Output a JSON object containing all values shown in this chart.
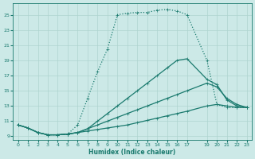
{
  "xlabel": "Humidex (Indice chaleur)",
  "line_color": "#1a7a6e",
  "bg_color": "#cce9e7",
  "grid_color": "#aed4d0",
  "xlim": [
    -0.5,
    23.5
  ],
  "ylim": [
    8.5,
    26.5
  ],
  "xticks": [
    0,
    1,
    2,
    3,
    4,
    5,
    6,
    7,
    8,
    9,
    10,
    11,
    12,
    13,
    14,
    15,
    16,
    17,
    19,
    20,
    21,
    22,
    23
  ],
  "yticks": [
    9,
    11,
    13,
    15,
    17,
    19,
    21,
    23,
    25
  ],
  "line1_x": [
    0,
    1,
    2,
    3,
    4,
    5,
    6,
    7,
    8,
    9,
    10,
    11,
    12,
    13,
    14,
    15,
    16,
    17,
    19,
    20,
    21,
    22,
    23
  ],
  "line1_y": [
    10.5,
    10.1,
    9.5,
    9.2,
    9.2,
    9.3,
    10.5,
    14.0,
    17.5,
    20.5,
    25.0,
    25.2,
    25.3,
    25.3,
    25.6,
    25.7,
    25.5,
    25.0,
    19.0,
    13.2,
    12.8,
    12.8,
    12.8
  ],
  "line2_x": [
    0,
    1,
    2,
    3,
    4,
    5,
    6,
    7,
    8,
    9,
    10,
    11,
    12,
    13,
    14,
    15,
    16,
    17,
    19,
    20,
    21,
    22,
    23
  ],
  "line2_y": [
    10.5,
    10.1,
    9.5,
    9.2,
    9.2,
    9.3,
    9.5,
    10.0,
    11.0,
    12.0,
    13.0,
    14.0,
    15.0,
    16.0,
    17.0,
    18.0,
    19.0,
    19.2,
    16.5,
    15.8,
    13.8,
    13.0,
    12.8
  ],
  "line3_x": [
    0,
    1,
    2,
    3,
    4,
    5,
    6,
    7,
    8,
    9,
    10,
    11,
    12,
    13,
    14,
    15,
    16,
    17,
    19,
    20,
    21,
    22,
    23
  ],
  "line3_y": [
    10.5,
    10.1,
    9.5,
    9.2,
    9.2,
    9.3,
    9.5,
    10.0,
    10.5,
    11.0,
    11.5,
    12.0,
    12.5,
    13.0,
    13.5,
    14.0,
    14.5,
    15.0,
    16.0,
    15.5,
    14.0,
    13.2,
    12.8
  ],
  "line4_x": [
    0,
    1,
    2,
    3,
    4,
    5,
    6,
    7,
    8,
    9,
    10,
    11,
    12,
    13,
    14,
    15,
    16,
    17,
    19,
    20,
    21,
    22,
    23
  ],
  "line4_y": [
    10.5,
    10.1,
    9.5,
    9.2,
    9.2,
    9.3,
    9.5,
    9.7,
    9.9,
    10.1,
    10.3,
    10.5,
    10.8,
    11.1,
    11.4,
    11.7,
    12.0,
    12.3,
    13.0,
    13.2,
    13.0,
    12.8,
    12.8
  ],
  "line1_style": "dotted",
  "line2_style": "solid",
  "line3_style": "solid",
  "line4_style": "solid"
}
